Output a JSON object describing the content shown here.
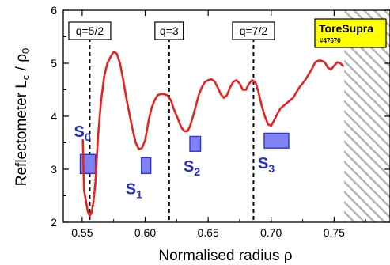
{
  "chart_data": {
    "type": "line",
    "xlabel": "Normalised radius  ρ",
    "ylabel": "Reflectometer  Lc / ρ0",
    "ylabel_main": "Reflectometer  L",
    "ylabel_sub": "c",
    "ylabel_mid": " / ρ",
    "ylabel_sub2": "0",
    "xlim": [
      0.535,
      0.795
    ],
    "ylim": [
      2,
      6
    ],
    "x_ticks": [
      0.55,
      0.6,
      0.65,
      0.7,
      0.75
    ],
    "x_tick_labels": [
      "0.55",
      "0.60",
      "0.65",
      "0.70",
      "0.75"
    ],
    "y_ticks": [
      2,
      3,
      4,
      5,
      6
    ],
    "y_tick_labels": [
      "2",
      "3",
      "4",
      "5",
      "6"
    ],
    "grid": false,
    "series": [
      {
        "color": "#e8231f",
        "x": [
          0.5505,
          0.5515,
          0.553,
          0.5545,
          0.556,
          0.5575,
          0.559,
          0.5605,
          0.5625,
          0.565,
          0.5675,
          0.57,
          0.5725,
          0.575,
          0.5775,
          0.58,
          0.5825,
          0.585,
          0.5875,
          0.59,
          0.5925,
          0.595,
          0.5975,
          0.6,
          0.6015,
          0.603,
          0.605,
          0.6075,
          0.61,
          0.6125,
          0.615,
          0.6175,
          0.6205,
          0.623,
          0.626,
          0.6285,
          0.631,
          0.6335,
          0.6355,
          0.638,
          0.6405,
          0.6425,
          0.645,
          0.6475,
          0.65,
          0.6525,
          0.655,
          0.6575,
          0.66,
          0.6625,
          0.665,
          0.6675,
          0.67,
          0.6725,
          0.675,
          0.6775,
          0.68,
          0.6825,
          0.685,
          0.6875,
          0.69,
          0.6925,
          0.695,
          0.6975,
          0.7,
          0.7025,
          0.705,
          0.7075,
          0.71,
          0.7125,
          0.715,
          0.7175,
          0.72,
          0.7225,
          0.725,
          0.7275,
          0.73,
          0.7325,
          0.735,
          0.7375,
          0.74,
          0.7425,
          0.745,
          0.7475,
          0.75,
          0.7525,
          0.755,
          0.757
        ],
        "y": [
          3.55,
          2.6,
          2.4,
          2.2,
          2.12,
          2.18,
          2.4,
          2.75,
          3.6,
          4.3,
          4.75,
          5.0,
          5.12,
          5.22,
          5.18,
          5.0,
          4.7,
          4.35,
          4.05,
          3.75,
          3.5,
          3.38,
          3.4,
          3.55,
          3.75,
          3.95,
          4.15,
          4.3,
          4.4,
          4.42,
          4.42,
          4.4,
          4.3,
          4.12,
          3.95,
          3.8,
          3.72,
          3.72,
          3.8,
          4.0,
          4.22,
          4.4,
          4.55,
          4.65,
          4.68,
          4.7,
          4.66,
          4.55,
          4.42,
          4.35,
          4.4,
          4.55,
          4.65,
          4.68,
          4.62,
          4.5,
          4.5,
          4.62,
          4.68,
          4.65,
          4.45,
          4.2,
          4.0,
          3.85,
          3.82,
          3.93,
          4.05,
          4.15,
          4.2,
          4.25,
          4.3,
          4.35,
          4.45,
          4.55,
          4.62,
          4.7,
          4.8,
          4.9,
          5.02,
          5.05,
          5.05,
          5.02,
          4.92,
          4.88,
          4.95,
          5.02,
          5.0,
          4.95
        ]
      }
    ],
    "q_surfaces": [
      {
        "label": "q=5/2",
        "x": 0.556
      },
      {
        "label": "q=3",
        "x": 0.619
      },
      {
        "label": "q=7/2",
        "x": 0.686
      }
    ],
    "zones": [
      {
        "name": "S",
        "sub": "0",
        "x0": 0.5485,
        "x1": 0.5605,
        "y0": 2.92,
        "y1": 3.28
      },
      {
        "name": "S",
        "sub": "1",
        "x0": 0.597,
        "x1": 0.6045,
        "y0": 2.92,
        "y1": 3.22
      },
      {
        "name": "S",
        "sub": "2",
        "x0": 0.6355,
        "x1": 0.644,
        "y0": 3.34,
        "y1": 3.62
      },
      {
        "name": "S",
        "sub": "3",
        "x0": 0.6945,
        "x1": 0.714,
        "y0": 3.4,
        "y1": 3.68
      }
    ],
    "shot_label": "ToreSupra",
    "shot_number": "#47670",
    "hatched_region_x0": 0.758,
    "colors": {
      "curve": "#e8231f",
      "zone_fill": "#7f82f5",
      "zone_stroke": "#2c34d6",
      "zone_label": "#2431c9",
      "shot_box": "#ffff00",
      "hatch": "#b4b4b4"
    }
  }
}
